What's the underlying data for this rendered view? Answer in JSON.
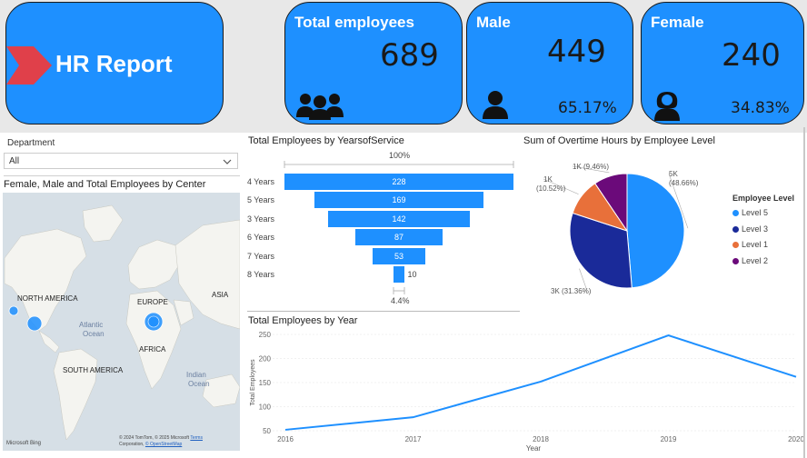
{
  "header": {
    "title": "HR Report",
    "total": {
      "label": "Total employees",
      "value": "689"
    },
    "male": {
      "label": "Male",
      "value": "449",
      "percent": "65.17%"
    },
    "female": {
      "label": "Female",
      "value": "240",
      "percent": "34.83%"
    }
  },
  "slicer": {
    "label": "Department",
    "value": "All"
  },
  "map": {
    "title": "Female, Male and Total Employees by Center",
    "labels": {
      "north_america": "NORTH AMERICA",
      "europe": "EUROPE",
      "asia": "ASIA",
      "africa": "AFRICA",
      "south_america": "SOUTH AMERICA",
      "atlantic": "Atlantic",
      "atlantic2": "Ocean",
      "indian": "Indian",
      "indian2": "Ocean"
    },
    "attribution_logo": "Microsoft Bing",
    "attribution_text1": "© 2024 TomTom, © 2025 Microsoft",
    "attribution_terms": "Terms",
    "attribution_text2": "Corporation,",
    "attribution_osm": "© OpenStreetMap"
  },
  "funnel": {
    "title": "Total Employees by YearsofService",
    "top_label": "100%",
    "bottom_label": "4.4%",
    "chart_data": {
      "type": "bar",
      "categories": [
        "4 Years",
        "5 Years",
        "3 Years",
        "6 Years",
        "7 Years",
        "8 Years"
      ],
      "values": [
        228,
        169,
        142,
        87,
        53,
        10
      ]
    }
  },
  "pie": {
    "title": "Sum of Overtime Hours by Employee Level",
    "legend_title": "Employee Level",
    "chart_data": {
      "type": "pie",
      "labels": [
        "Level 5",
        "Level 3",
        "Level 1",
        "Level 2"
      ],
      "values": [
        48.66,
        31.36,
        10.52,
        9.46
      ],
      "data_labels": [
        "5K",
        "3K (31.36%)",
        "1K",
        "1K (9.46%)"
      ],
      "data_labels_pct": [
        "(48.66%)",
        "",
        "(10.52%)",
        ""
      ],
      "colors": [
        "#1e90ff",
        "#1a2a99",
        "#e8703a",
        "#6b0a7a"
      ]
    }
  },
  "line": {
    "title": "Total Employees by Year",
    "chart_data": {
      "type": "line",
      "x": [
        "2016",
        "2017",
        "2018",
        "2019",
        "2020"
      ],
      "values": [
        52,
        78,
        152,
        248,
        162
      ],
      "xlabel": "Year",
      "ylabel": "Total Employees",
      "ylim": [
        50,
        250
      ],
      "yticks": [
        "50",
        "100",
        "150",
        "200",
        "250"
      ],
      "color": "#1e90ff"
    }
  }
}
